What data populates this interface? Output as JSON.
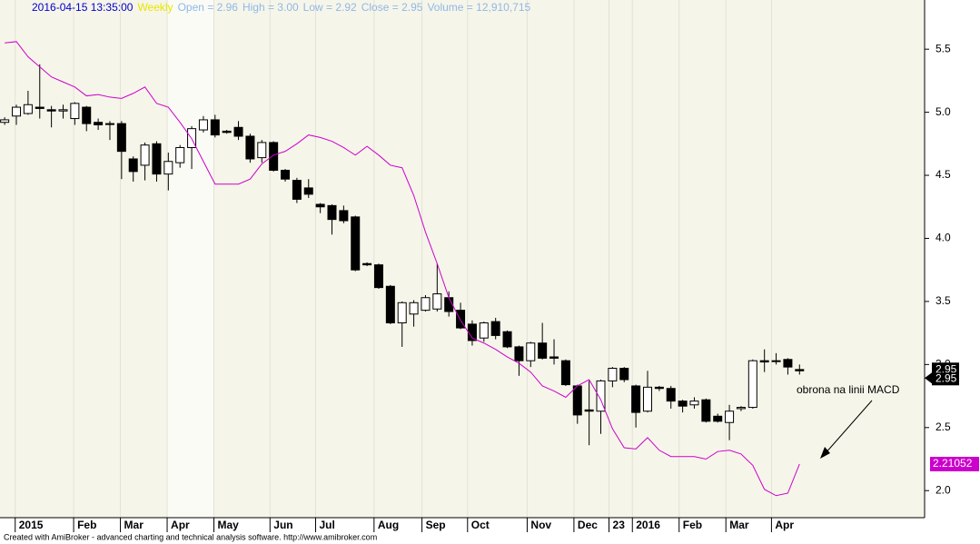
{
  "chart_data": {
    "type": "candlestick",
    "header": {
      "date": "2016-04-15 13:35:00",
      "interval": "Weekly",
      "fields": [
        "Open = 2.96",
        "High = 3.00",
        "Low = 2.92",
        "Close = 2.95",
        "Volume = 12,910,715"
      ]
    },
    "categories": [
      null,
      null,
      null,
      null,
      null,
      null,
      null,
      null,
      null,
      null,
      null,
      null,
      null,
      null,
      null,
      null,
      null,
      null,
      null,
      null,
      null,
      null,
      null,
      null,
      null,
      null,
      null,
      null,
      null,
      null,
      null,
      null,
      null,
      null,
      null,
      null,
      null,
      null,
      null,
      null,
      null,
      null,
      null,
      null,
      null,
      null,
      null,
      null,
      null,
      null,
      null,
      null,
      null,
      null,
      null,
      null,
      null,
      null,
      null,
      null,
      null,
      null,
      null,
      null,
      null,
      null,
      null,
      null,
      null
    ],
    "open": [
      4.92,
      4.97,
      4.99,
      5.04,
      5.02,
      5.01,
      4.95,
      5.04,
      4.92,
      4.91,
      4.91,
      4.63,
      4.58,
      4.75,
      4.51,
      4.6,
      4.72,
      4.86,
      4.94,
      4.85,
      4.88,
      4.81,
      4.64,
      4.76,
      4.54,
      4.46,
      4.4,
      4.27,
      4.26,
      4.22,
      4.17,
      3.8,
      3.79,
      3.62,
      3.33,
      3.4,
      3.43,
      3.44,
      3.53,
      3.43,
      3.32,
      3.21,
      3.34,
      3.26,
      3.14,
      3.03,
      3.17,
      3.06,
      3.03,
      2.83,
      2.64,
      2.63,
      2.87,
      2.97,
      2.83,
      2.63,
      2.82,
      2.81,
      2.71,
      2.68,
      2.72,
      2.59,
      2.54,
      2.65,
      2.66,
      3.03,
      3.03,
      3.04,
      2.96
    ],
    "high": [
      4.96,
      5.06,
      5.17,
      5.38,
      5.05,
      5.06,
      5.08,
      5.05,
      4.95,
      4.93,
      4.93,
      4.65,
      4.76,
      4.77,
      4.68,
      4.74,
      4.89,
      4.97,
      4.98,
      4.86,
      4.93,
      4.83,
      4.78,
      4.77,
      4.55,
      4.48,
      4.47,
      4.28,
      4.27,
      4.26,
      4.18,
      3.81,
      3.8,
      3.63,
      3.5,
      3.51,
      3.55,
      3.8,
      3.58,
      3.49,
      3.35,
      3.34,
      3.37,
      3.27,
      3.15,
      3.18,
      3.33,
      3.2,
      3.04,
      2.84,
      2.87,
      2.88,
      2.98,
      2.98,
      2.84,
      2.95,
      2.83,
      2.83,
      2.72,
      2.74,
      2.73,
      2.61,
      2.68,
      2.67,
      3.04,
      3.12,
      3.09,
      3.05,
      3.0
    ],
    "low": [
      4.9,
      4.9,
      4.98,
      4.95,
      4.88,
      4.95,
      4.9,
      4.85,
      4.86,
      4.78,
      4.47,
      4.45,
      4.46,
      4.45,
      4.38,
      4.56,
      4.55,
      4.84,
      4.8,
      4.83,
      4.78,
      4.6,
      4.6,
      4.53,
      4.45,
      4.28,
      4.32,
      4.2,
      4.03,
      4.12,
      3.74,
      3.78,
      3.6,
      3.32,
      3.14,
      3.3,
      3.42,
      3.42,
      3.38,
      3.28,
      3.15,
      3.18,
      3.2,
      3.13,
      2.91,
      2.98,
      3.04,
      3.0,
      2.83,
      2.53,
      2.36,
      2.45,
      2.82,
      2.86,
      2.5,
      2.62,
      2.79,
      2.65,
      2.62,
      2.65,
      2.54,
      2.54,
      2.4,
      2.63,
      2.65,
      2.94,
      3.0,
      2.92,
      2.92
    ],
    "close": [
      4.94,
      5.04,
      5.06,
      5.03,
      5.01,
      5.02,
      5.07,
      4.91,
      4.9,
      4.91,
      4.69,
      4.53,
      4.74,
      4.51,
      4.61,
      4.72,
      4.87,
      4.94,
      4.82,
      4.84,
      4.81,
      4.63,
      4.76,
      4.54,
      4.47,
      4.31,
      4.35,
      4.25,
      4.15,
      4.14,
      3.75,
      3.79,
      3.61,
      3.33,
      3.49,
      3.49,
      3.53,
      3.56,
      3.42,
      3.29,
      3.19,
      3.33,
      3.23,
      3.14,
      3.03,
      3.17,
      3.05,
      3.05,
      2.84,
      2.6,
      2.63,
      2.87,
      2.97,
      2.88,
      2.62,
      2.82,
      2.81,
      2.71,
      2.67,
      2.71,
      2.55,
      2.55,
      2.63,
      2.66,
      3.03,
      3.02,
      3.03,
      2.98,
      2.95
    ],
    "up_color": "#ffffff",
    "down_color": "#000000",
    "overlay": {
      "color": "#cc00cc",
      "values": [
        5.55,
        5.56,
        5.44,
        5.36,
        5.28,
        5.24,
        5.2,
        5.13,
        5.14,
        5.12,
        5.11,
        5.15,
        5.2,
        5.07,
        5.04,
        4.92,
        4.79,
        4.61,
        4.43,
        4.43,
        4.43,
        4.47,
        4.59,
        4.66,
        4.69,
        4.75,
        4.82,
        4.8,
        4.77,
        4.72,
        4.66,
        4.73,
        4.66,
        4.58,
        4.56,
        4.34,
        4.05,
        3.8,
        3.53,
        3.35,
        3.21,
        3.17,
        3.12,
        3.06,
        3.01,
        2.94,
        2.83,
        2.79,
        2.74,
        2.83,
        2.88,
        2.72,
        2.49,
        2.34,
        2.33,
        2.42,
        2.32,
        2.27,
        2.27,
        2.27,
        2.25,
        2.31,
        2.32,
        2.29,
        2.2,
        2.01,
        1.96,
        1.98,
        2.21052
      ]
    },
    "xlim": [
      -0.4,
      78.7
    ],
    "xticks": [
      {
        "value": 0.9,
        "label": "2015"
      },
      {
        "value": 5.9,
        "label": "Feb"
      },
      {
        "value": 9.9,
        "label": "Mar"
      },
      {
        "value": 13.9,
        "label": "Apr"
      },
      {
        "value": 17.9,
        "label": "May"
      },
      {
        "value": 22.7,
        "label": "Jun"
      },
      {
        "value": 26.6,
        "label": "Jul"
      },
      {
        "value": 31.6,
        "label": "Aug"
      },
      {
        "value": 35.7,
        "label": "Sep"
      },
      {
        "value": 39.6,
        "label": "Oct"
      },
      {
        "value": 44.7,
        "label": "Nov"
      },
      {
        "value": 48.7,
        "label": "Dec"
      },
      {
        "value": 51.7,
        "label": "23"
      },
      {
        "value": 53.7,
        "label": "2016"
      },
      {
        "value": 57.7,
        "label": "Feb"
      },
      {
        "value": 61.7,
        "label": "Mar"
      },
      {
        "value": 65.6,
        "label": "Apr"
      }
    ],
    "ylim": [
      1.8,
      5.89
    ],
    "yticks": [
      {
        "value": 2,
        "label": "2.0"
      },
      2.5,
      {
        "value": 3,
        "label": "3.0"
      },
      3.5,
      {
        "value": 4,
        "label": "4.0"
      },
      4.5,
      {
        "value": 5,
        "label": "5.0"
      },
      5.5
    ],
    "annotation": "obrona na linii MACD",
    "footer": "Created with AmiBroker - advanced charting and technical analysis software. http://www.amibroker.com"
  }
}
